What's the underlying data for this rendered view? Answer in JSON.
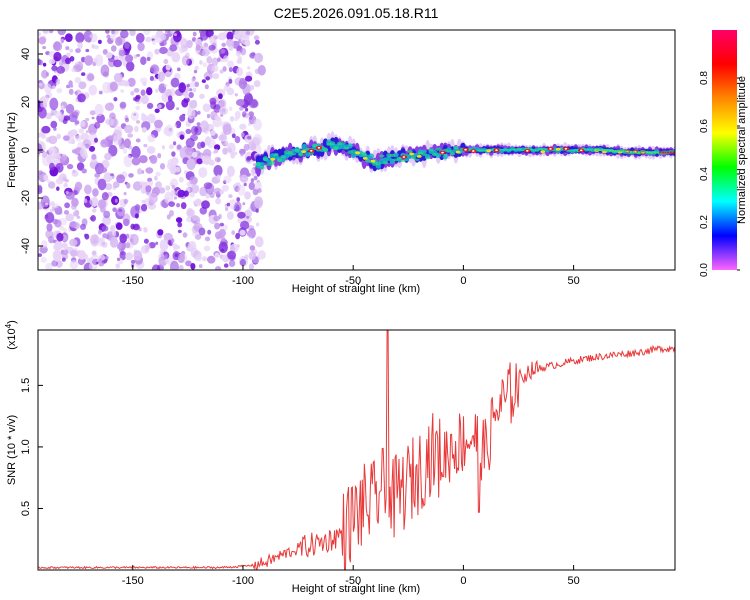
{
  "figure_title": "C2E5.2026.091.05.18.R11",
  "chart_data": [
    {
      "type": "heatmap",
      "title": "C2E5.2026.091.05.18.R11",
      "xlabel": "Height of straight line (km)",
      "ylabel": "Frequency (Hz)",
      "xlim": [
        -193,
        96
      ],
      "ylim": [
        -50,
        50
      ],
      "xticks": [
        -150,
        -100,
        -50,
        0,
        50
      ],
      "yticks": [
        -40,
        -20,
        0,
        20,
        40
      ],
      "noise_region_x": [
        -193,
        -95
      ],
      "signal_ridge": [
        {
          "x": -93,
          "y": -6
        },
        {
          "x": -85,
          "y": -3
        },
        {
          "x": -75,
          "y": -1
        },
        {
          "x": -65,
          "y": 1
        },
        {
          "x": -55,
          "y": 2
        },
        {
          "x": -45,
          "y": -3
        },
        {
          "x": -40,
          "y": -5
        },
        {
          "x": -30,
          "y": -3
        },
        {
          "x": -20,
          "y": -2
        },
        {
          "x": -10,
          "y": -1
        },
        {
          "x": 0,
          "y": 0
        },
        {
          "x": 10,
          "y": 0
        },
        {
          "x": 20,
          "y": 0
        },
        {
          "x": 40,
          "y": 0
        },
        {
          "x": 60,
          "y": 0
        },
        {
          "x": 80,
          "y": -1
        },
        {
          "x": 96,
          "y": -1
        }
      ],
      "colorbar": {
        "label": "Normalized spectral amplitude",
        "range": [
          0.0,
          1.0
        ],
        "ticks": [
          "0.0",
          "0.2",
          "0.4",
          "0.6",
          "0.8"
        ],
        "colors": [
          "#ff66ff",
          "#0000ff",
          "#00ffff",
          "#00ff00",
          "#ffff00",
          "#ff8800",
          "#ff0000",
          "#ff0066"
        ]
      }
    },
    {
      "type": "line",
      "xlabel": "Height of straight line (km)",
      "ylabel": "SNR (10 * v/v)",
      "multiplier": "(x10",
      "multiplier_exp": "4",
      "multiplier_close": ")",
      "xlim": [
        -193,
        96
      ],
      "ylim": [
        0,
        1.95
      ],
      "xticks": [
        -150,
        -100,
        -50,
        0,
        50
      ],
      "yticks": [
        0.5,
        1.0,
        1.5
      ],
      "ytick_labels": [
        "0.5",
        "1.0",
        "1.5"
      ],
      "series": [
        {
          "name": "SNR",
          "color": "#e83a3a",
          "x": [
            -193,
            -150,
            -110,
            -100,
            -95,
            -90,
            -85,
            -80,
            -75,
            -70,
            -65,
            -60,
            -55,
            -50,
            -45,
            -40,
            -37,
            -35,
            -30,
            -25,
            -20,
            -15,
            -10,
            -5,
            0,
            5,
            10,
            15,
            20,
            25,
            30,
            40,
            50,
            60,
            70,
            80,
            90,
            96
          ],
          "values": [
            0.02,
            0.02,
            0.02,
            0.03,
            0.04,
            0.06,
            0.1,
            0.14,
            0.17,
            0.2,
            0.22,
            0.25,
            0.3,
            0.42,
            0.52,
            0.55,
            0.7,
            0.5,
            0.6,
            0.7,
            0.8,
            0.95,
            0.9,
            1.0,
            1.05,
            1.1,
            0.95,
            1.3,
            1.38,
            1.55,
            1.62,
            1.66,
            1.7,
            1.73,
            1.75,
            1.77,
            1.8,
            1.8
          ]
        }
      ],
      "spike": {
        "x": -34.5,
        "value": 1.95
      }
    }
  ]
}
